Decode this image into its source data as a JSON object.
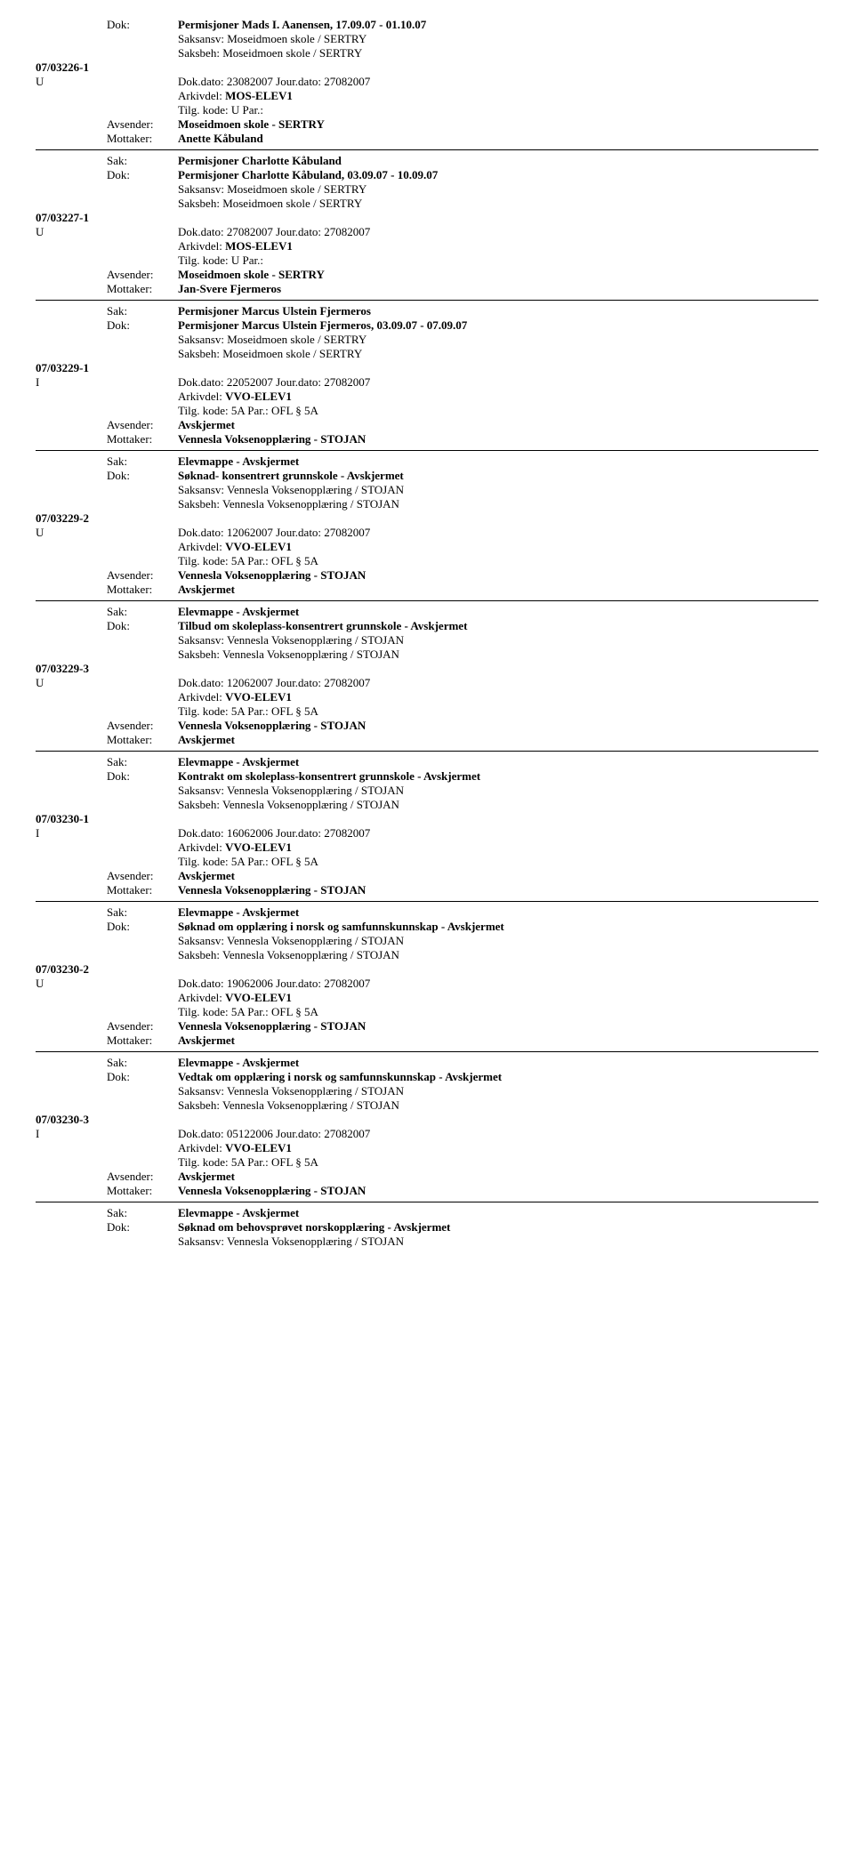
{
  "labels": {
    "dok": "Dok:",
    "saksansv": "Saksansv:",
    "saksbeh": "Saksbeh:",
    "dokdato": "Dok.dato:",
    "jourdato": "Jour.dato:",
    "arkivdel": "Arkivdel:",
    "tilgkode": "Tilg. kode:",
    "par": "Par.:",
    "avsender": "Avsender:",
    "mottaker": "Mottaker:",
    "sak": "Sak:"
  },
  "entries": [
    {
      "caseno": "07/03226-1",
      "doctype": "U",
      "header_dok": "Permisjoner Mads I. Aanensen, 17.09.07 - 01.10.07",
      "header_saksansv": "Moseidmoen skole / SERTRY",
      "header_saksbeh": "Moseidmoen skole / SERTRY",
      "dokdato": "23082007",
      "jourdato": "27082007",
      "arkivdel": "MOS-ELEV1",
      "tilgkode": "U",
      "par": "",
      "avsender": "Moseidmoen skole - SERTRY",
      "mottaker": "Anette Kåbuland",
      "sak": "Permisjoner Charlotte Kåbuland",
      "dok2": "Permisjoner Charlotte Kåbuland, 03.09.07 - 10.09.07",
      "footer_saksansv": "Moseidmoen skole / SERTRY",
      "footer_saksbeh": "Moseidmoen skole / SERTRY",
      "show_header": true
    },
    {
      "caseno": "07/03227-1",
      "doctype": "U",
      "dokdato": "27082007",
      "jourdato": "27082007",
      "arkivdel": "MOS-ELEV1",
      "tilgkode": "U",
      "par": "",
      "avsender": "Moseidmoen skole - SERTRY",
      "mottaker": "Jan-Svere Fjermeros",
      "sak": "Permisjoner Marcus Ulstein Fjermeros",
      "dok2": "Permisjoner Marcus Ulstein Fjermeros, 03.09.07 - 07.09.07",
      "footer_saksansv": "Moseidmoen skole / SERTRY",
      "footer_saksbeh": "Moseidmoen skole / SERTRY",
      "show_header": false
    },
    {
      "caseno": "07/03229-1",
      "doctype": "I",
      "dokdato": "22052007",
      "jourdato": "27082007",
      "arkivdel": "VVO-ELEV1",
      "tilgkode": "5A",
      "par": "OFL § 5A",
      "avsender": "Avskjermet",
      "mottaker": "Vennesla Voksenopplæring - STOJAN",
      "sak": "Elevmappe - Avskjermet",
      "dok2": "Søknad- konsentrert grunnskole - Avskjermet",
      "footer_saksansv": "Vennesla Voksenopplæring / STOJAN",
      "footer_saksbeh": "Vennesla Voksenopplæring / STOJAN",
      "show_header": false
    },
    {
      "caseno": "07/03229-2",
      "doctype": "U",
      "dokdato": "12062007",
      "jourdato": "27082007",
      "arkivdel": "VVO-ELEV1",
      "tilgkode": "5A",
      "par": "OFL § 5A",
      "avsender": "Vennesla Voksenopplæring - STOJAN",
      "mottaker": "Avskjermet",
      "sak": "Elevmappe - Avskjermet",
      "dok2": "Tilbud om skoleplass-konsentrert grunnskole - Avskjermet",
      "footer_saksansv": "Vennesla Voksenopplæring / STOJAN",
      "footer_saksbeh": "Vennesla Voksenopplæring / STOJAN",
      "show_header": false
    },
    {
      "caseno": "07/03229-3",
      "doctype": "U",
      "dokdato": "12062007",
      "jourdato": "27082007",
      "arkivdel": "VVO-ELEV1",
      "tilgkode": "5A",
      "par": "OFL § 5A",
      "avsender": "Vennesla Voksenopplæring - STOJAN",
      "mottaker": "Avskjermet",
      "sak": "Elevmappe - Avskjermet",
      "dok2": "Kontrakt om skoleplass-konsentrert grunnskole - Avskjermet",
      "footer_saksansv": "Vennesla Voksenopplæring / STOJAN",
      "footer_saksbeh": "Vennesla Voksenopplæring / STOJAN",
      "show_header": false
    },
    {
      "caseno": "07/03230-1",
      "doctype": "I",
      "dokdato": "16062006",
      "jourdato": "27082007",
      "arkivdel": "VVO-ELEV1",
      "tilgkode": "5A",
      "par": "OFL § 5A",
      "avsender": "Avskjermet",
      "mottaker": "Vennesla Voksenopplæring - STOJAN",
      "sak": "Elevmappe - Avskjermet",
      "dok2": "Søknad om opplæring i norsk og samfunnskunnskap - Avskjermet",
      "footer_saksansv": "Vennesla Voksenopplæring / STOJAN",
      "footer_saksbeh": "Vennesla Voksenopplæring / STOJAN",
      "show_header": false
    },
    {
      "caseno": "07/03230-2",
      "doctype": "U",
      "dokdato": "19062006",
      "jourdato": "27082007",
      "arkivdel": "VVO-ELEV1",
      "tilgkode": "5A",
      "par": "OFL § 5A",
      "avsender": "Vennesla Voksenopplæring - STOJAN",
      "mottaker": "Avskjermet",
      "sak": "Elevmappe - Avskjermet",
      "dok2": "Vedtak om opplæring i norsk og samfunnskunnskap - Avskjermet",
      "footer_saksansv": "Vennesla Voksenopplæring / STOJAN",
      "footer_saksbeh": "Vennesla Voksenopplæring / STOJAN",
      "show_header": false
    },
    {
      "caseno": "07/03230-3",
      "doctype": "I",
      "dokdato": "05122006",
      "jourdato": "27082007",
      "arkivdel": "VVO-ELEV1",
      "tilgkode": "5A",
      "par": "OFL § 5A",
      "avsender": "Avskjermet",
      "mottaker": "Vennesla Voksenopplæring - STOJAN",
      "sak": "Elevmappe - Avskjermet",
      "dok2": "Søknad om behovsprøvet norskopplæring - Avskjermet",
      "footer_saksansv": "Vennesla Voksenopplæring / STOJAN",
      "footer_saksbeh": "",
      "show_header": false
    }
  ]
}
